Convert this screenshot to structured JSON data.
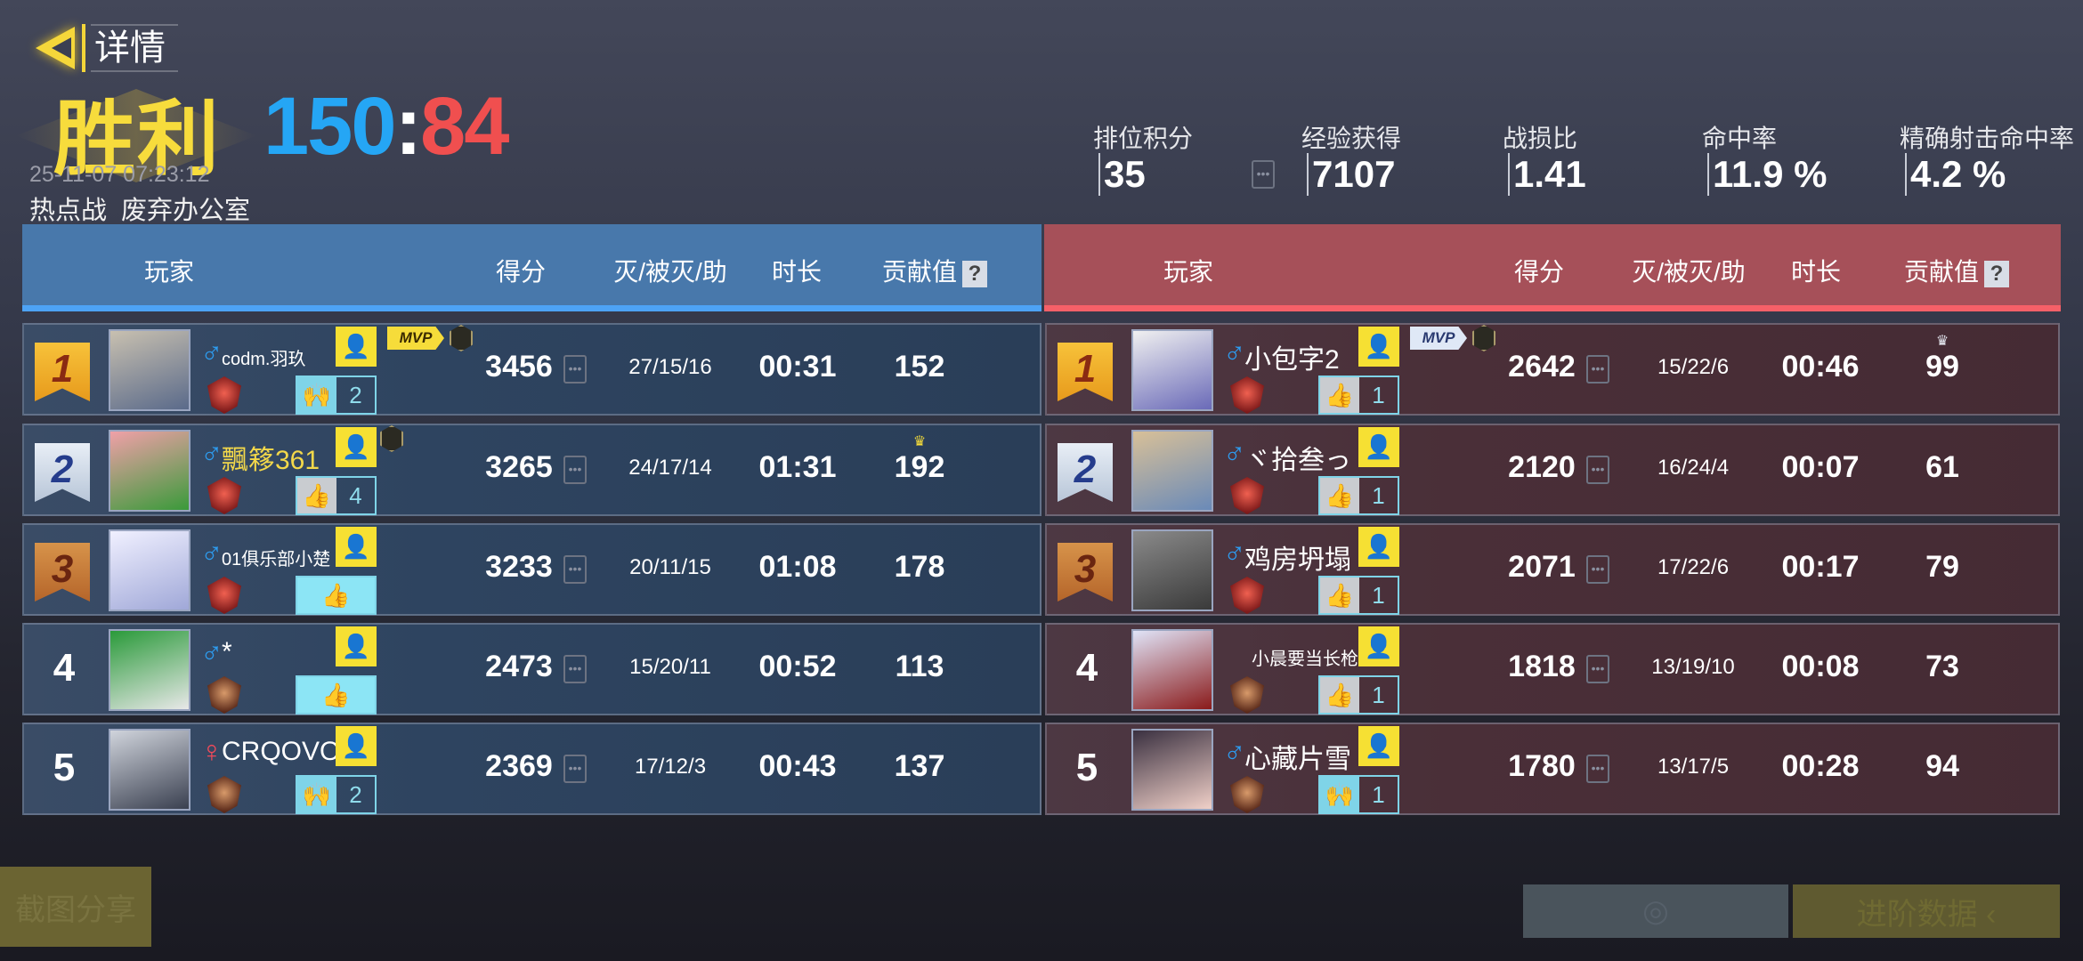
{
  "header": {
    "back_label": "详情",
    "result": "胜利",
    "score_blue": "150",
    "score_sep": ":",
    "score_red": "84",
    "datetime": "25-11-07 07:23:12",
    "mode": "热点战",
    "map": "废弃办公室"
  },
  "stats": [
    {
      "label": "排位积分",
      "value": "35"
    },
    {
      "label": "经验获得",
      "value": "7107"
    },
    {
      "label": "战损比",
      "value": "1.41"
    },
    {
      "label": "命中率",
      "value": "11.9 %"
    },
    {
      "label": "精确射击命中率",
      "value": "4.2 %"
    }
  ],
  "columns": {
    "player": "玩家",
    "score": "得分",
    "kda": "灭/被灭/助",
    "duration": "时长",
    "contribution": "贡献值",
    "help": "?"
  },
  "colors": {
    "blue_team": "#4878ab",
    "red_team": "#a65059",
    "victory": "#f7dc3c",
    "blue_score": "#25a6f5",
    "red_score": "#f04f4f"
  },
  "teams": {
    "blue": [
      {
        "rank": "1",
        "name": "codm.羽玖",
        "gender": "♂",
        "likes": "2",
        "like_icon": "hands",
        "mvp": "MVP",
        "score": "3456",
        "kda": "27/15/16",
        "time": "00:31",
        "contribution": "152"
      },
      {
        "rank": "2",
        "name": "飄簃361",
        "gender": "♂",
        "likes": "4",
        "like_icon": "thumb-gray",
        "name_color": "#f3d84a",
        "score": "3265",
        "kda": "24/17/14",
        "time": "01:31",
        "contribution": "192",
        "top_contribution": true
      },
      {
        "rank": "3",
        "name": "01俱乐部小楚",
        "gender": "♂",
        "likes": "",
        "like_icon": "thumb-full",
        "score": "3233",
        "kda": "20/11/15",
        "time": "01:08",
        "contribution": "178"
      },
      {
        "rank": "4",
        "name": "*",
        "gender": "♂",
        "likes": "",
        "like_icon": "thumb-full",
        "score": "2473",
        "kda": "15/20/11",
        "time": "00:52",
        "contribution": "113"
      },
      {
        "rank": "5",
        "name": "CRQOVO",
        "gender": "♀",
        "likes": "2",
        "like_icon": "hands",
        "score": "2369",
        "kda": "17/12/3",
        "time": "00:43",
        "contribution": "137"
      }
    ],
    "red": [
      {
        "rank": "1",
        "name": "小包字2",
        "gender": "♂",
        "likes": "1",
        "like_icon": "thumb-gray",
        "mvp": "MVP",
        "score": "2642",
        "kda": "15/22/6",
        "time": "00:46",
        "contribution": "99",
        "top_contribution": true
      },
      {
        "rank": "2",
        "name": "ヾ拾叁っ",
        "gender": "♂",
        "likes": "1",
        "like_icon": "thumb-gray",
        "score": "2120",
        "kda": "16/24/4",
        "time": "00:07",
        "contribution": "61"
      },
      {
        "rank": "3",
        "name": "鸡房坍塌",
        "gender": "♂",
        "likes": "1",
        "like_icon": "thumb-gray",
        "score": "2071",
        "kda": "17/22/6",
        "time": "00:17",
        "contribution": "79"
      },
      {
        "rank": "4",
        "name": "小晨要当长枪神",
        "gender": "",
        "likes": "1",
        "like_icon": "thumb-gray",
        "score": "1818",
        "kda": "13/19/10",
        "time": "00:08",
        "contribution": "73"
      },
      {
        "rank": "5",
        "name": "心藏片雪",
        "gender": "♂",
        "likes": "1",
        "like_icon": "hands",
        "score": "1780",
        "kda": "13/17/5",
        "time": "00:28",
        "contribution": "94"
      }
    ]
  },
  "buttons": {
    "screenshot_share": "截图分享",
    "advanced_data": "进阶数据 ‹"
  }
}
